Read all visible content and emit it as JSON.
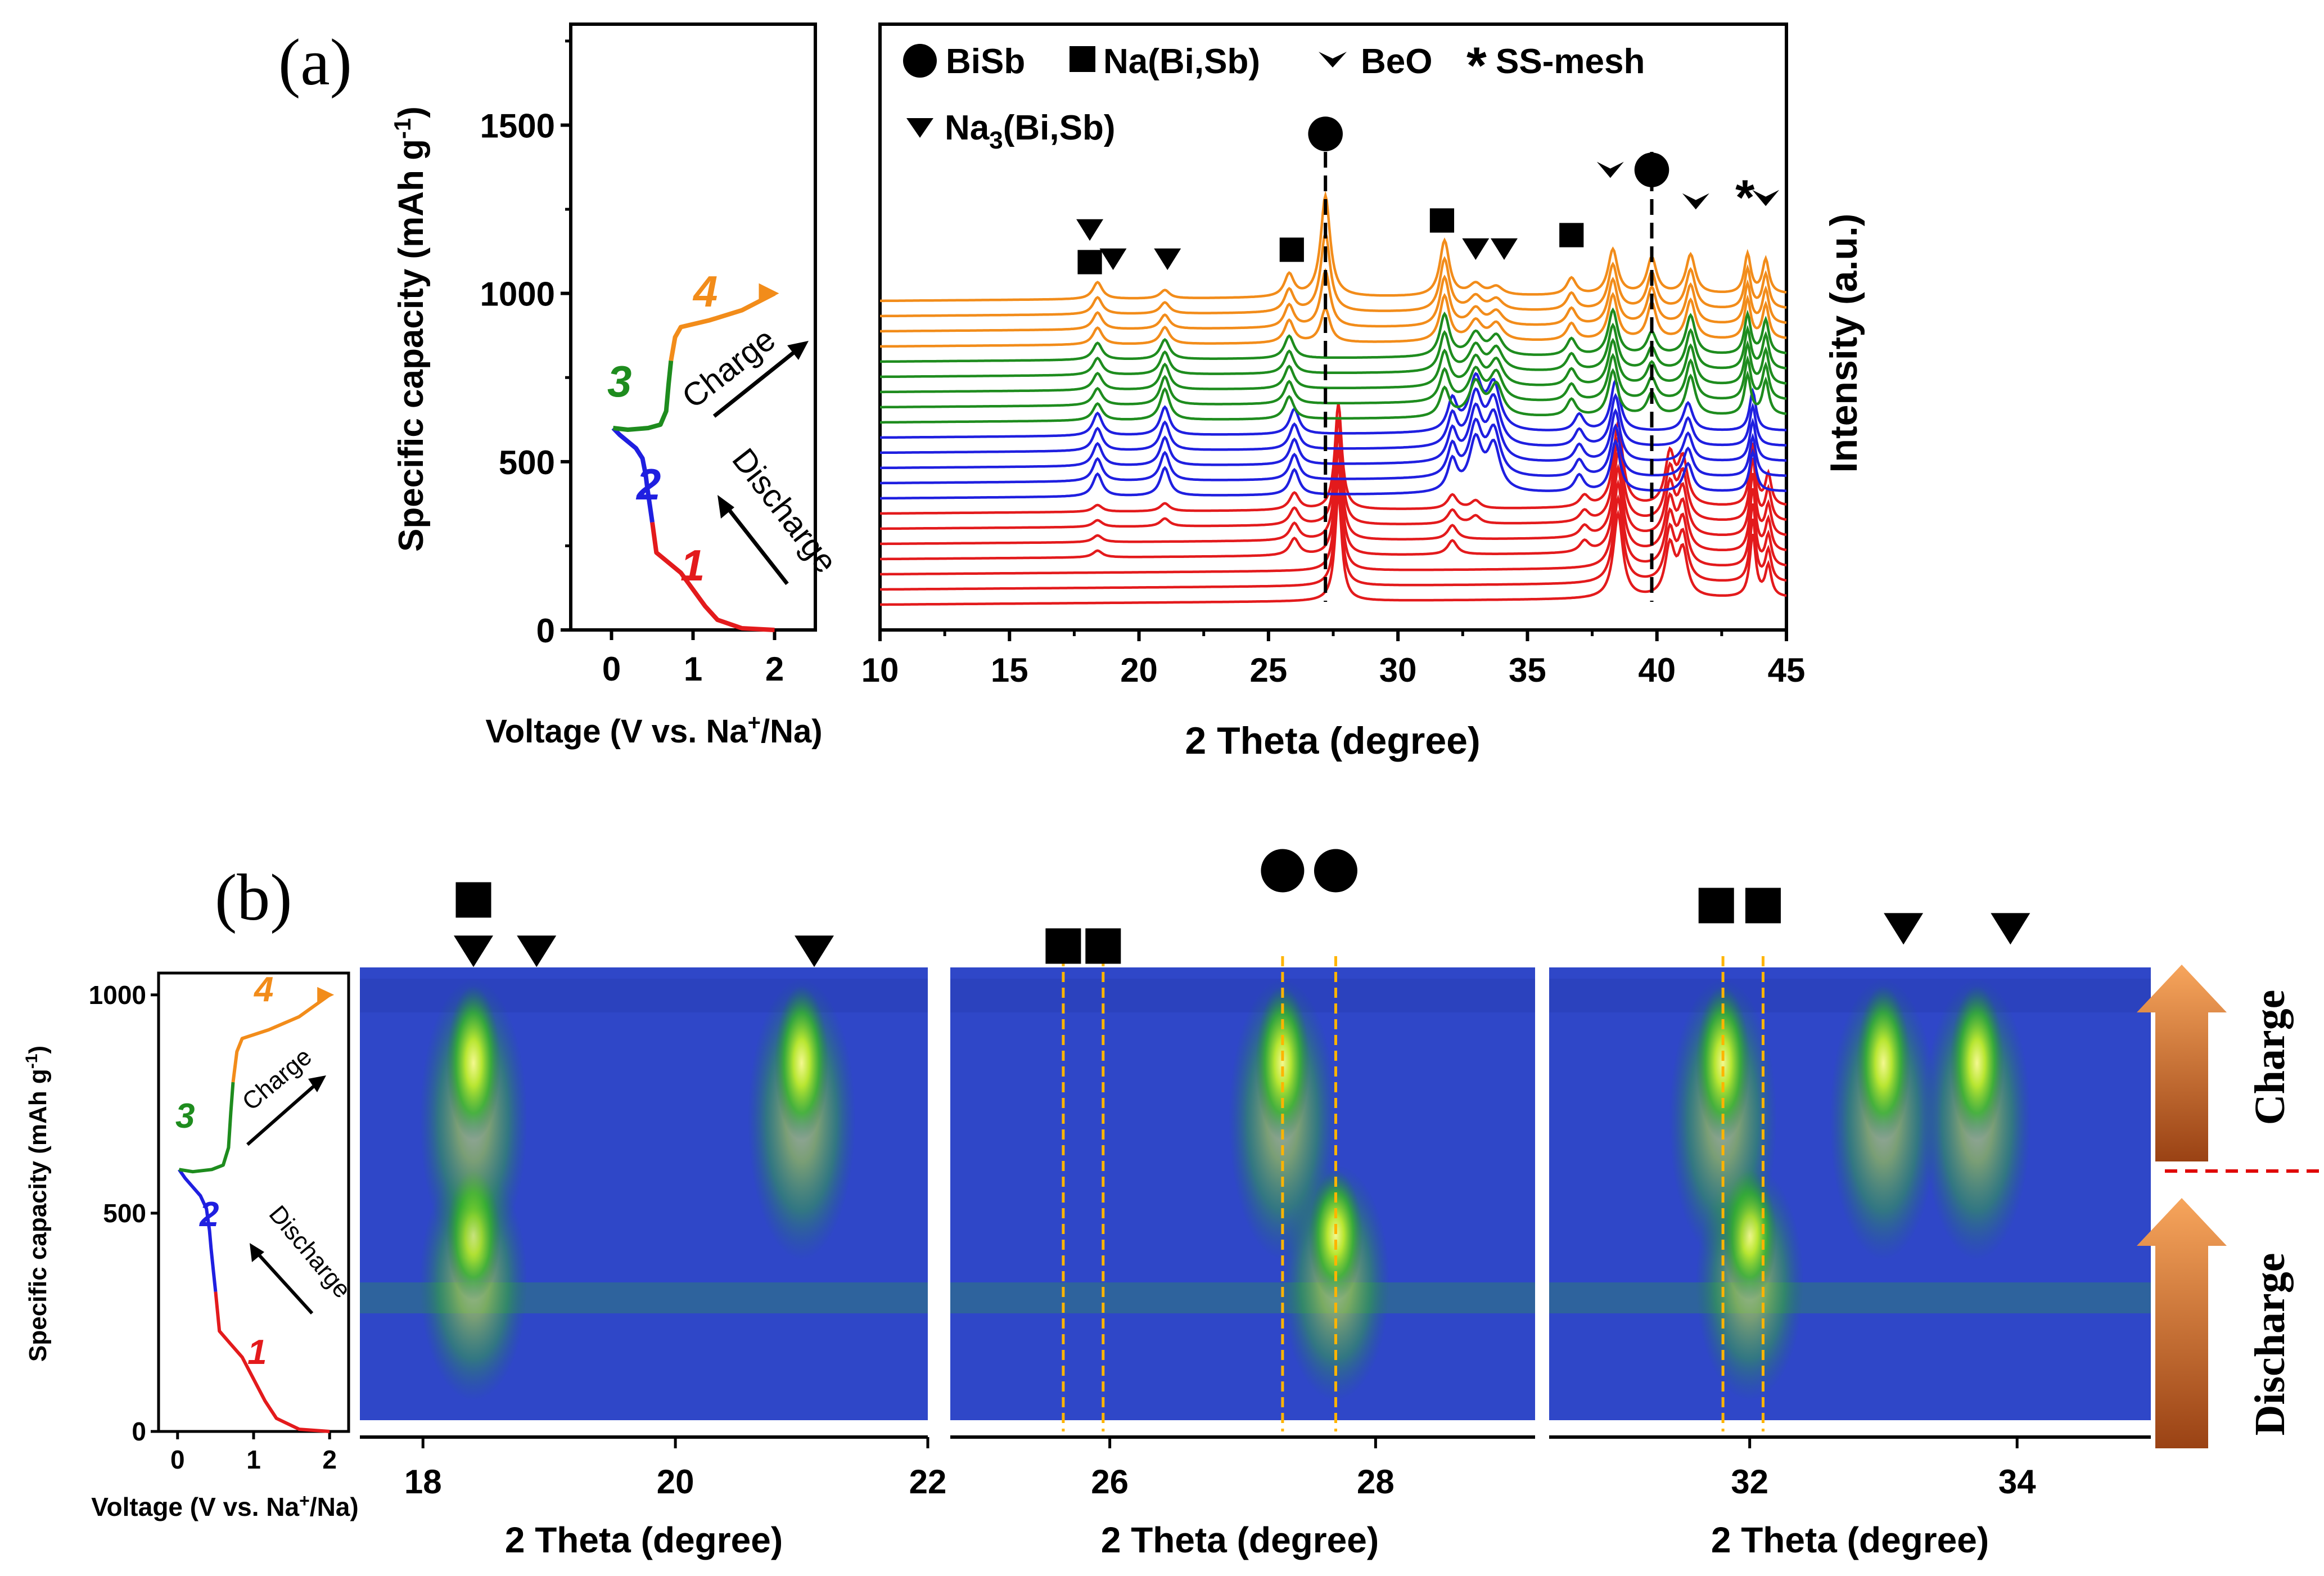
{
  "panels": {
    "a": "(a)",
    "b": "(b)"
  },
  "colors": {
    "s1": "#e31a1c",
    "s2": "#1f1fe0",
    "s3": "#1e8c1e",
    "s4": "#f28c1a",
    "black": "#000000",
    "guide": "#ffb400",
    "split": "#e00000"
  },
  "chart_data": [
    {
      "id": "a-voltage",
      "type": "line",
      "title": "",
      "xlabel_pre": "Voltage (V vs. Na",
      "xlabel_sup": "+",
      "xlabel_post": "/Na)",
      "ylabel_pre": "Specific capacity (mAh g",
      "ylabel_sup": "-1",
      "ylabel_post": ")",
      "xlim": [
        -0.5,
        2.5
      ],
      "ylim": [
        0,
        1800
      ],
      "xticks": [
        0,
        1,
        2
      ],
      "yticks": [
        0,
        500,
        1000,
        1500
      ],
      "xticklabels": [
        "0",
        "1",
        "2"
      ],
      "yticklabels": [
        "0",
        "500",
        "1000",
        "1500"
      ],
      "series": [
        {
          "name": "1",
          "color_key": "s1",
          "x": [
            2.0,
            1.6,
            1.3,
            1.15,
            1.0,
            0.85,
            0.7,
            0.55,
            0.5
          ],
          "y": [
            0,
            5,
            30,
            70,
            120,
            170,
            200,
            230,
            320
          ]
        },
        {
          "name": "2",
          "color_key": "s2",
          "x": [
            0.5,
            0.47,
            0.44,
            0.42,
            0.38,
            0.3,
            0.2,
            0.1,
            0.02
          ],
          "y": [
            320,
            370,
            420,
            460,
            510,
            540,
            560,
            580,
            600
          ]
        },
        {
          "name": "3",
          "color_key": "s3",
          "x": [
            0.02,
            0.2,
            0.45,
            0.6,
            0.67,
            0.7,
            0.73
          ],
          "y": [
            600,
            595,
            600,
            610,
            650,
            730,
            800
          ]
        },
        {
          "name": "4",
          "color_key": "s4",
          "x": [
            0.73,
            0.78,
            0.85,
            1.2,
            1.6,
            2.0
          ],
          "y": [
            800,
            870,
            900,
            920,
            950,
            1000
          ]
        }
      ],
      "labels": [
        "1",
        "2",
        "3",
        "4"
      ],
      "annotations": {
        "charge": "Charge",
        "discharge": "Discharge"
      }
    },
    {
      "id": "a-xrd",
      "type": "line",
      "title": "",
      "xlabel": "2 Theta (degree)",
      "ylabel": "Intensity (a.u.)",
      "xlim": [
        10,
        45
      ],
      "xticks": [
        10,
        15,
        20,
        25,
        30,
        35,
        40,
        45
      ],
      "xticklabels": [
        "10",
        "15",
        "20",
        "25",
        "30",
        "35",
        "40",
        "45"
      ],
      "stack": {
        "count": 21,
        "groups": [
          {
            "color_key": "s1",
            "count": 7
          },
          {
            "color_key": "s2",
            "count": 5
          },
          {
            "color_key": "s3",
            "count": 5
          },
          {
            "color_key": "s4",
            "count": 4
          }
        ]
      },
      "reference_lines": [
        27.2,
        39.8
      ],
      "legend": {
        "bisb": "BiSb",
        "nabisb": "Na(Bi,Sb)",
        "beo": "BeO",
        "ssmesh": "SS-mesh",
        "na3_pre": "Na",
        "na3_sub": "3",
        "na3_post": "(Bi,Sb)"
      },
      "markers": [
        {
          "type": "circle",
          "x": 27.2
        },
        {
          "type": "circle",
          "x": 39.8
        },
        {
          "type": "triangle",
          "x": 18.1
        },
        {
          "type": "square",
          "x": 18.1
        },
        {
          "type": "triangle",
          "x": 19.0
        },
        {
          "type": "triangle",
          "x": 21.1
        },
        {
          "type": "square",
          "x": 25.9
        },
        {
          "type": "square",
          "x": 31.7
        },
        {
          "type": "triangle",
          "x": 33.0
        },
        {
          "type": "triangle",
          "x": 34.1
        },
        {
          "type": "square",
          "x": 36.7
        },
        {
          "type": "chevron",
          "x": 38.2
        },
        {
          "type": "chevron",
          "x": 41.5
        },
        {
          "type": "star",
          "x": 43.4
        },
        {
          "type": "chevron",
          "x": 44.2
        }
      ],
      "star_glyph": "*"
    },
    {
      "id": "b-voltage",
      "type": "line",
      "xlabel_pre": "Voltage (V vs. Na",
      "xlabel_sup": "+",
      "xlabel_post": "/Na)",
      "ylabel_pre": "Specific capacity (mAh g",
      "ylabel_sup": "-1",
      "ylabel_post": ")",
      "xlim": [
        -0.25,
        2.25
      ],
      "ylim": [
        0,
        1050
      ],
      "xticks": [
        0,
        1,
        2
      ],
      "yticks": [
        0,
        500,
        1000
      ],
      "xticklabels": [
        "0",
        "1",
        "2"
      ],
      "yticklabels": [
        "0",
        "500",
        "1000"
      ],
      "labels": [
        "1",
        "2",
        "3",
        "4"
      ],
      "annotations": {
        "charge": "Charge",
        "discharge": "Discharge"
      }
    },
    {
      "id": "b-contour-1",
      "type": "heatmap",
      "xlabel": "2 Theta (degree)",
      "xlim": [
        17.5,
        22
      ],
      "xticks": [
        18,
        20,
        22
      ],
      "xticklabels": [
        "18",
        "20",
        "22"
      ],
      "markers": [
        {
          "type": "square",
          "x": 18.4
        },
        {
          "type": "triangle",
          "x": 18.4
        },
        {
          "type": "triangle",
          "x": 18.9
        },
        {
          "type": "triangle",
          "x": 21.1
        }
      ],
      "peaks": [
        {
          "x": 18.4,
          "phase": "discharge"
        },
        {
          "x": 18.4,
          "phase": "charge"
        },
        {
          "x": 21.0,
          "phase": "charge"
        }
      ]
    },
    {
      "id": "b-contour-2",
      "type": "heatmap",
      "xlabel": "2 Theta (degree)",
      "xlim": [
        24.8,
        29.2
      ],
      "xticks": [
        26,
        28
      ],
      "xticklabels": [
        "26",
        "28"
      ],
      "reference_lines": [
        25.65,
        25.95,
        27.3,
        27.7
      ],
      "markers": [
        {
          "type": "square",
          "x": 25.65
        },
        {
          "type": "square",
          "x": 25.95
        },
        {
          "type": "circle",
          "x": 27.3
        },
        {
          "type": "circle",
          "x": 27.7
        }
      ],
      "peaks": [
        {
          "x": 27.7,
          "phase": "discharge"
        },
        {
          "x": 27.3,
          "phase": "charge"
        }
      ]
    },
    {
      "id": "b-contour-3",
      "type": "heatmap",
      "xlabel": "2 Theta (degree)",
      "xlim": [
        30.5,
        35
      ],
      "xticks": [
        32,
        34
      ],
      "xticklabels": [
        "32",
        "34"
      ],
      "reference_lines": [
        31.8,
        32.1
      ],
      "markers": [
        {
          "type": "square",
          "x": 31.75
        },
        {
          "type": "square",
          "x": 32.1
        },
        {
          "type": "triangle",
          "x": 33.15
        },
        {
          "type": "triangle",
          "x": 33.95
        }
      ],
      "peaks": [
        {
          "x": 32.0,
          "phase": "discharge"
        },
        {
          "x": 31.8,
          "phase": "charge"
        },
        {
          "x": 33.0,
          "phase": "charge"
        },
        {
          "x": 33.7,
          "phase": "charge"
        }
      ]
    }
  ],
  "b_right": {
    "charge": "Charge",
    "discharge": "Discharge"
  }
}
